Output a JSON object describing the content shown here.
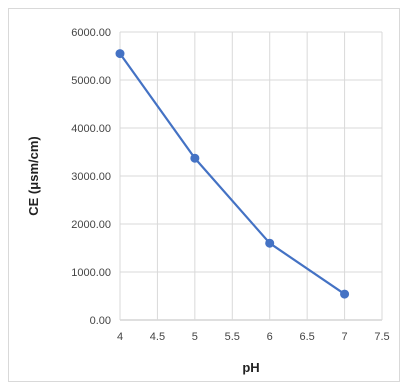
{
  "chart_data": {
    "type": "line",
    "title": "",
    "xlabel": "pH",
    "ylabel": "CE (μsm/cm)",
    "xlim": [
      4,
      7.5
    ],
    "ylim": [
      0,
      6000
    ],
    "x_ticks": [
      4,
      4.5,
      5,
      5.5,
      6,
      6.5,
      7,
      7.5
    ],
    "x_tick_labels": [
      "4",
      "4.5",
      "5",
      "5.5",
      "6",
      "6.5",
      "7",
      "7.5"
    ],
    "y_ticks": [
      0,
      1000,
      2000,
      3000,
      4000,
      5000,
      6000
    ],
    "y_tick_labels": [
      "0.00",
      "1000.00",
      "2000.00",
      "3000.00",
      "4000.00",
      "5000.00",
      "6000.00"
    ],
    "grid": true,
    "legend": "none",
    "series": [
      {
        "x": [
          4,
          5,
          6,
          7
        ],
        "y": [
          5550,
          3370,
          1600,
          540
        ],
        "color": "#4472c4",
        "marker": "circle"
      }
    ]
  }
}
